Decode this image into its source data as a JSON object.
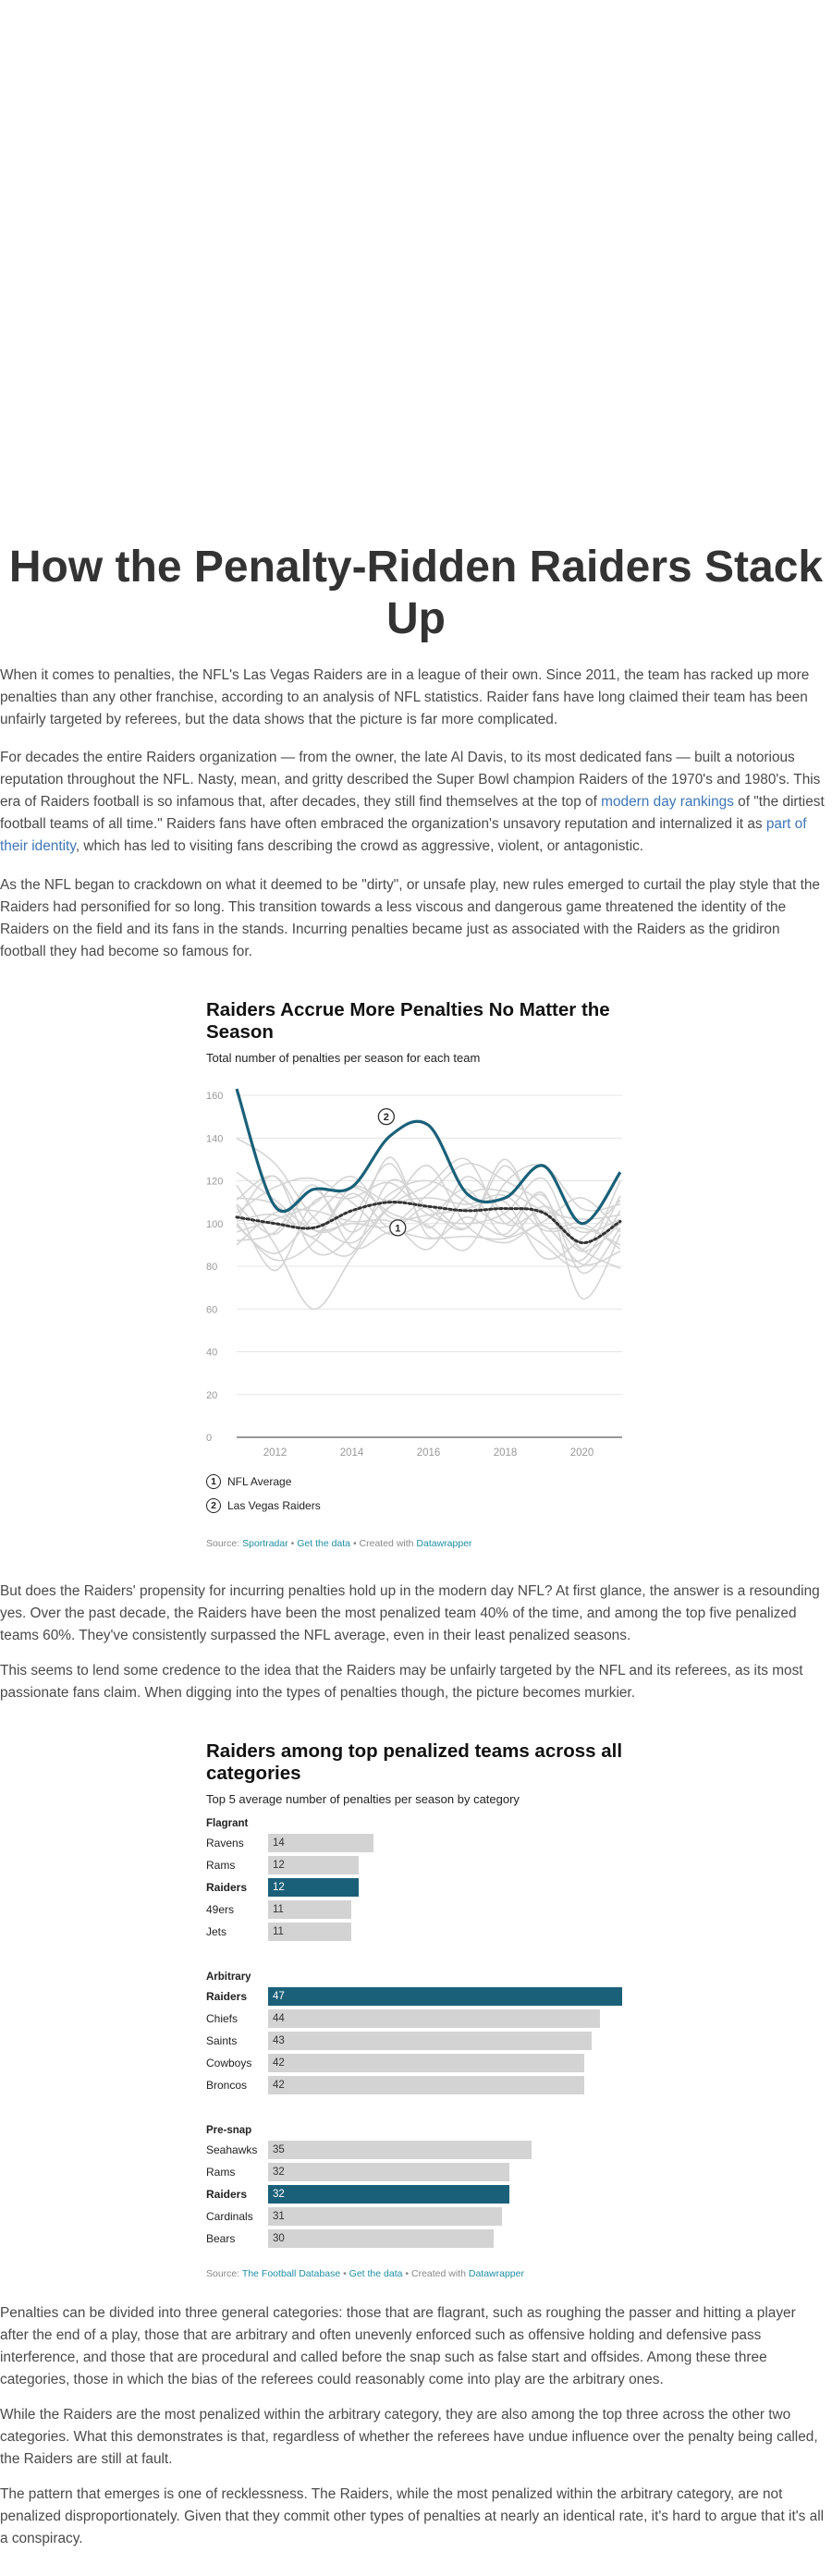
{
  "article": {
    "title": "How the Penalty-Ridden Raiders Stack Up",
    "p1": "When it comes to penalties, the NFL's Las Vegas Raiders are in a league of their own. Since 2011, the team has racked up more penalties than any other franchise, according to an analysis of NFL statistics. Raider fans have long claimed their team has been unfairly targeted by referees, but the data shows that the picture is far more complicated.",
    "p2_a": "For decades the entire Raiders organization — from the owner, the late Al Davis, to its most dedicated fans — built a notorious reputation throughout the NFL. Nasty, mean, and gritty described the Super Bowl champion Raiders of the 1970's and 1980's. This era of Raiders football is so infamous that, after decades, they still find themselves at the top of ",
    "p2_link1": "modern day rankings",
    "p2_b": " of \"the dirtiest football teams of all time.\" Raiders fans have often embraced the organization's unsavory reputation and internalized it as ",
    "p2_link2": "part of their identity",
    "p2_c": ", which has led to visiting fans describing the crowd as aggressive, violent, or antagonistic.",
    "p3": "As the NFL began to crackdown on what it deemed to be \"dirty\", or unsafe play, new rules emerged to curtail the play style that the Raiders had personified for so long. This transition towards a less viscous and dangerous game threatened the identity of the Raiders on the field and its fans in the stands. Incurring penalties became just as associated with the Raiders as the gridiron football they had become so famous for.",
    "p4": "But does the Raiders' propensity for incurring penalties hold up in the modern day NFL? At first glance, the answer is a resounding yes. Over the past decade, the Raiders have been the most penalized team 40% of the time, and among the top five penalized teams 60%. They've consistently surpassed the NFL average, even in their least penalized seasons.",
    "p5": "This seems to lend some credence to the idea that the Raiders may be unfairly targeted by the NFL and its referees, as its most passionate fans claim. When digging into the types of penalties though, the picture becomes murkier.",
    "p6": "Penalties can be divided into three general categories: those that are flagrant, such as roughing the passer and hitting a player after the end of a play, those that are arbitrary and often unevenly enforced such as offensive holding and defensive pass interference, and those that are procedural and called before the snap such as false start and offsides. Among these three categories, those in which the bias of the referees could reasonably come into play are the arbitrary ones.",
    "p7": "While the Raiders are the most penalized within the arbitrary category, they are also among the top three across the other two categories. What this demonstrates is that, regardless of whether the referees have undue influence over the penalty being called, the Raiders are still at fault.",
    "p8": "The pattern that emerges is one of recklessness. The Raiders, while the most penalized within the arbitrary category, are not penalized disproportionately. Given that they commit other types of penalties at nearly an identical rate, it's hard to argue that it's all a conspiracy."
  },
  "line_chart": {
    "title": "Raiders Accrue More Penalties No Matter the Season",
    "subtitle": "Total number of penalties per season for each team",
    "legend": [
      {
        "num": "1",
        "label": "NFL Average"
      },
      {
        "num": "2",
        "label": "Las Vegas Raiders"
      }
    ],
    "source_prefix": "Source: ",
    "source_name": "Sportradar",
    "get_data": "Get the data",
    "created_with": "Created with ",
    "tool": "Datawrapper",
    "colors": {
      "raiders": "#1a6079",
      "average": "#333333",
      "other": "#d4d4d4"
    }
  },
  "bar_chart": {
    "title": "Raiders among top penalized teams across all categories",
    "subtitle": "Top 5 average number of penalties per season by category",
    "source_prefix": "Source: ",
    "source_name": "The Football Database",
    "get_data": "Get the data",
    "created_with": "Created with ",
    "tool": "Datawrapper",
    "colors": {
      "highlight": "#1a6079",
      "other": "#d3d3d3"
    }
  },
  "chart_data": [
    {
      "type": "line",
      "title": "Raiders Accrue More Penalties No Matter the Season",
      "subtitle": "Total number of penalties per season for each team",
      "xlim": [
        2011,
        2021
      ],
      "x_ticks": [
        2012,
        2014,
        2016,
        2018,
        2020
      ],
      "ylim": [
        0,
        160
      ],
      "y_ticks": [
        0,
        20,
        40,
        60,
        80,
        100,
        120,
        140,
        160
      ],
      "grid": true,
      "x": [
        2011,
        2012,
        2013,
        2014,
        2015,
        2016,
        2017,
        2018,
        2019,
        2020,
        2021
      ],
      "series": [
        {
          "name": "Las Vegas Raiders",
          "values": [
            163,
            108,
            116,
            117,
            141,
            146,
            114,
            112,
            127,
            100,
            124
          ]
        },
        {
          "name": "NFL Average",
          "values": [
            103,
            100,
            98,
            106,
            110,
            108,
            106,
            107,
            105,
            91,
            101
          ]
        }
      ],
      "other_teams": [
        [
          118,
          90,
          60,
          84,
          108,
          118,
          130,
          100,
          105,
          87,
          100
        ],
        [
          111,
          122,
          97,
          103,
          128,
          98,
          122,
          104,
          90,
          80,
          106
        ],
        [
          109,
          95,
          116,
          96,
          114,
          120,
          110,
          100,
          113,
          77,
          98
        ],
        [
          99,
          86,
          103,
          117,
          105,
          99,
          88,
          119,
          127,
          107,
          109
        ],
        [
          140,
          128,
          103,
          91,
          108,
          112,
          109,
          113,
          97,
          98,
          90
        ],
        [
          105,
          117,
          121,
          110,
          95,
          102,
          116,
          94,
          108,
          96,
          102
        ],
        [
          100,
          83,
          91,
          114,
          98,
          108,
          98,
          127,
          99,
          100,
          88
        ],
        [
          102,
          122,
          87,
          95,
          131,
          94,
          103,
          95,
          114,
          65,
          95
        ],
        [
          96,
          102,
          109,
          122,
          103,
          104,
          107,
          110,
          84,
          93,
          111
        ],
        [
          124,
          111,
          97,
          100,
          99,
          114,
          128,
          120,
          109,
          88,
          79
        ],
        [
          92,
          96,
          118,
          89,
          96,
          93,
          94,
          93,
          101,
          112,
          96
        ],
        [
          108,
          78,
          110,
          112,
          119,
          104,
          100,
          105,
          121,
          88,
          120
        ],
        [
          112,
          109,
          94,
          117,
          111,
          127,
          99,
          91,
          99,
          81,
          87
        ],
        [
          90,
          105,
          106,
          101,
          101,
          88,
          113,
          115,
          106,
          102,
          104
        ],
        [
          101,
          104,
          93,
          86,
          120,
          107,
          98,
          130,
          95,
          83,
          113
        ]
      ],
      "annotations": [
        {
          "label": "2",
          "x": 2014.9,
          "y": 150
        },
        {
          "label": "1",
          "x": 2015.2,
          "y": 98
        }
      ]
    },
    {
      "type": "bar",
      "title": "Raiders among top penalized teams across all categories",
      "subtitle": "Top 5 average number of penalties per season by category",
      "xlim": [
        0,
        47
      ],
      "groups": [
        {
          "name": "Flagrant",
          "categories": [
            "Ravens",
            "Rams",
            "Raiders",
            "49ers",
            "Jets"
          ],
          "values": [
            14,
            12,
            12,
            11,
            11
          ],
          "highlight": [
            false,
            false,
            true,
            false,
            false
          ]
        },
        {
          "name": "Arbitrary",
          "categories": [
            "Raiders",
            "Chiefs",
            "Saints",
            "Cowboys",
            "Broncos"
          ],
          "values": [
            47,
            44,
            43,
            42,
            42
          ],
          "highlight": [
            true,
            false,
            false,
            false,
            false
          ]
        },
        {
          "name": "Pre-snap",
          "categories": [
            "Seahawks",
            "Rams",
            "Raiders",
            "Cardinals",
            "Bears"
          ],
          "values": [
            35,
            32,
            32,
            31,
            30
          ],
          "highlight": [
            false,
            false,
            true,
            false,
            false
          ]
        }
      ]
    }
  ]
}
